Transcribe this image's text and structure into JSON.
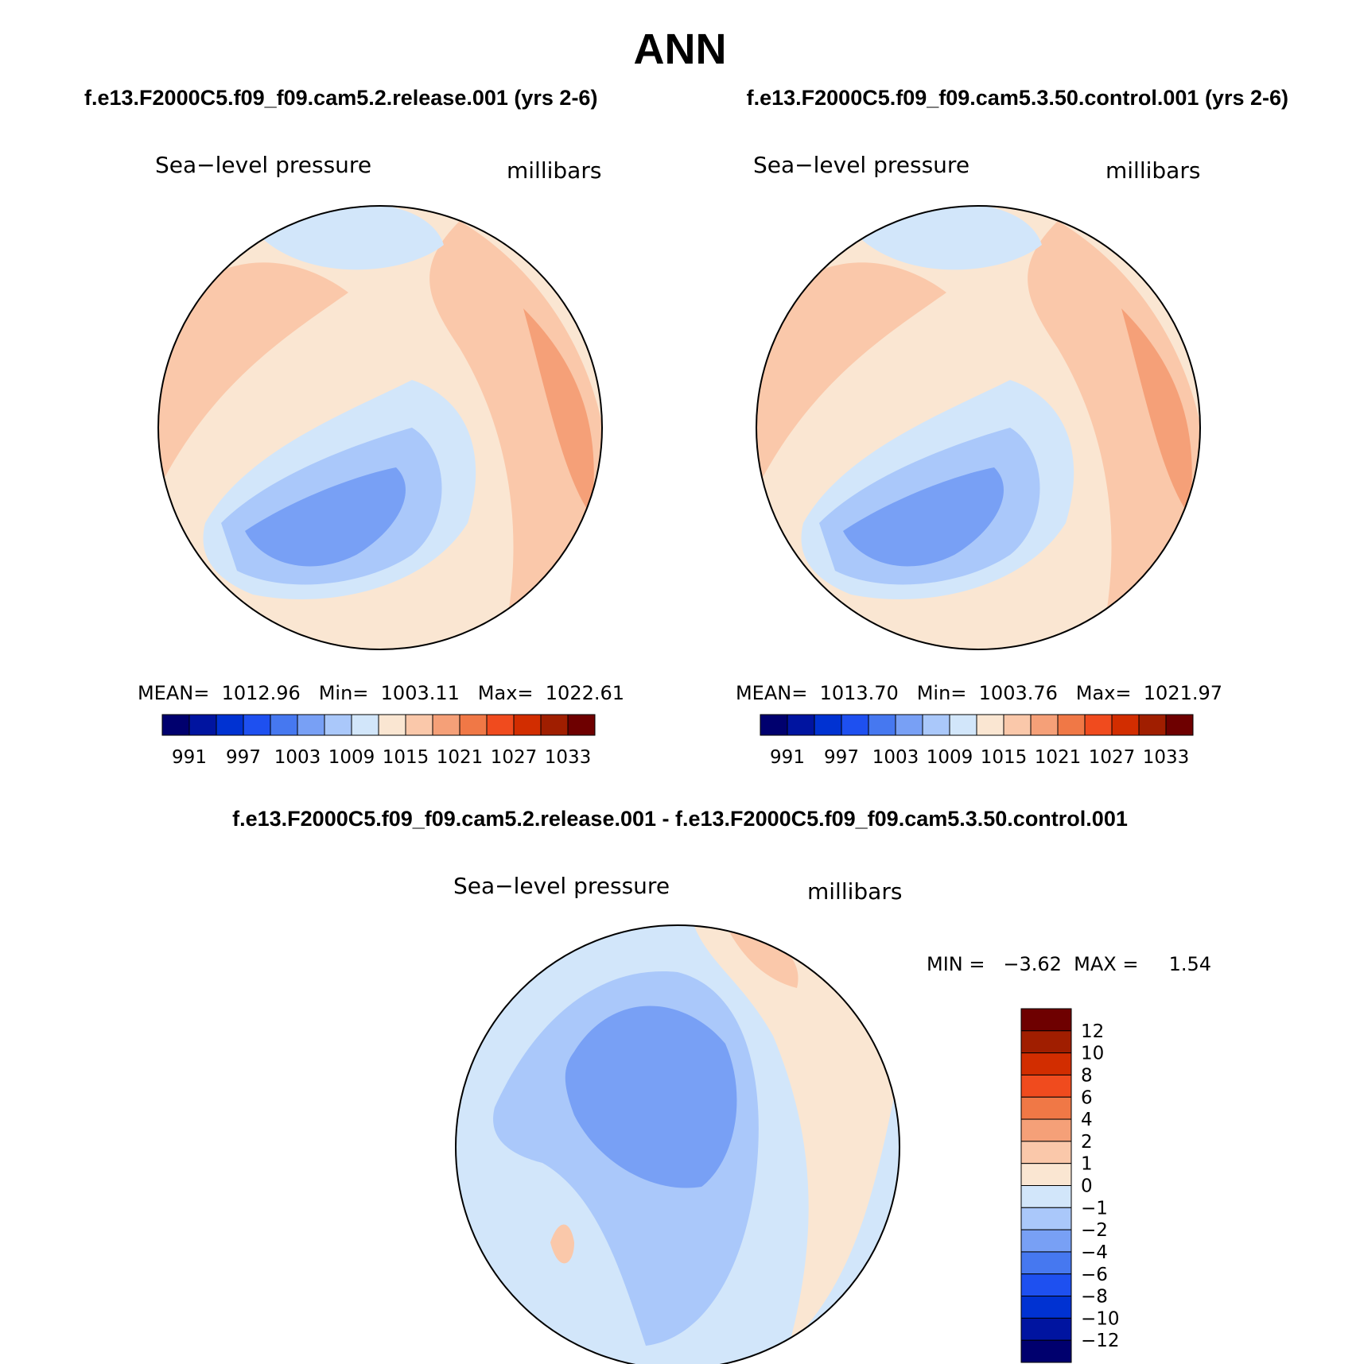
{
  "figure_title": "ANN",
  "chart_data": [
    {
      "type": "heatmap",
      "projection": "north-polar-stereographic",
      "case": "f.e13.F2000C5.f09_f09.cam5.2.release.001 (yrs 2-6)",
      "variable": "Sea−level pressure",
      "units": "millibars",
      "stats_text": "MEAN=  1012.96   Min=  1003.11   Max=  1022.61",
      "stats": {
        "mean": 1012.96,
        "min": 1003.11,
        "max": 1022.61
      },
      "colorbar": {
        "orientation": "horizontal",
        "levels": [
          991,
          994,
          997,
          1000,
          1003,
          1006,
          1009,
          1012,
          1015,
          1018,
          1021,
          1024,
          1027,
          1030,
          1033
        ],
        "tick_labels": [
          "991",
          "997",
          "1003",
          "1009",
          "1015",
          "1021",
          "1027",
          "1033"
        ],
        "colors": [
          "#00006e",
          "#0014a0",
          "#0032d2",
          "#1e50f0",
          "#4678f0",
          "#78a0f5",
          "#aac8fa",
          "#d2e6fa",
          "#fae6d2",
          "#fac8aa",
          "#f5a078",
          "#f07846",
          "#f04b1e",
          "#d22d00",
          "#a01e00",
          "#6e0000"
        ]
      },
      "field_colors": {
        "base": "#fae6d2",
        "warm1": "#fac8aa",
        "warm2": "#f5a078",
        "cool1": "#d2e6fa",
        "cool2": "#aac8fa",
        "cool3": "#78a0f5"
      }
    },
    {
      "type": "heatmap",
      "projection": "north-polar-stereographic",
      "case": "f.e13.F2000C5.f09_f09.cam5.3.50.control.001 (yrs 2-6)",
      "variable": "Sea−level pressure",
      "units": "millibars",
      "stats_text": "MEAN=  1013.70   Min=  1003.76   Max=  1021.97",
      "stats": {
        "mean": 1013.7,
        "min": 1003.76,
        "max": 1021.97
      },
      "colorbar": {
        "orientation": "horizontal",
        "levels": [
          991,
          994,
          997,
          1000,
          1003,
          1006,
          1009,
          1012,
          1015,
          1018,
          1021,
          1024,
          1027,
          1030,
          1033
        ],
        "tick_labels": [
          "991",
          "997",
          "1003",
          "1009",
          "1015",
          "1021",
          "1027",
          "1033"
        ],
        "colors": [
          "#00006e",
          "#0014a0",
          "#0032d2",
          "#1e50f0",
          "#4678f0",
          "#78a0f5",
          "#aac8fa",
          "#d2e6fa",
          "#fae6d2",
          "#fac8aa",
          "#f5a078",
          "#f07846",
          "#f04b1e",
          "#d22d00",
          "#a01e00",
          "#6e0000"
        ]
      },
      "field_colors": {
        "base": "#fae6d2",
        "warm1": "#fac8aa",
        "warm2": "#f5a078",
        "cool1": "#d2e6fa",
        "cool2": "#aac8fa",
        "cool3": "#78a0f5"
      }
    },
    {
      "type": "heatmap",
      "projection": "north-polar-stereographic",
      "case": "f.e13.F2000C5.f09_f09.cam5.2.release.001 - f.e13.F2000C5.f09_f09.cam5.3.50.control.001",
      "variable": "Sea−level pressure",
      "units": "millibars",
      "stats_text": "MIN =   −3.62  MAX =     1.54",
      "stats": {
        "min": -3.62,
        "max": 1.54
      },
      "colorbar": {
        "orientation": "vertical",
        "levels": [
          -12,
          -10,
          -8,
          -6,
          -4,
          -2,
          -1,
          0,
          1,
          2,
          4,
          6,
          8,
          10,
          12
        ],
        "tick_labels": [
          "12",
          "10",
          "8",
          "6",
          "4",
          "2",
          "1",
          "0",
          "−1",
          "−2",
          "−4",
          "−6",
          "−8",
          "−10",
          "−12"
        ],
        "colors": [
          "#00006e",
          "#0014a0",
          "#0032d2",
          "#1e50f0",
          "#4678f0",
          "#78a0f5",
          "#aac8fa",
          "#d2e6fa",
          "#fae6d2",
          "#fac8aa",
          "#f5a078",
          "#f07846",
          "#f04b1e",
          "#d22d00",
          "#a01e00",
          "#6e0000"
        ]
      },
      "field_colors": {
        "base": "#d2e6fa",
        "warm1": "#fae6d2",
        "warm2": "#fac8aa",
        "cool1": "#aac8fa",
        "cool2": "#78a0f5",
        "cool3": "#78a0f5"
      }
    }
  ]
}
